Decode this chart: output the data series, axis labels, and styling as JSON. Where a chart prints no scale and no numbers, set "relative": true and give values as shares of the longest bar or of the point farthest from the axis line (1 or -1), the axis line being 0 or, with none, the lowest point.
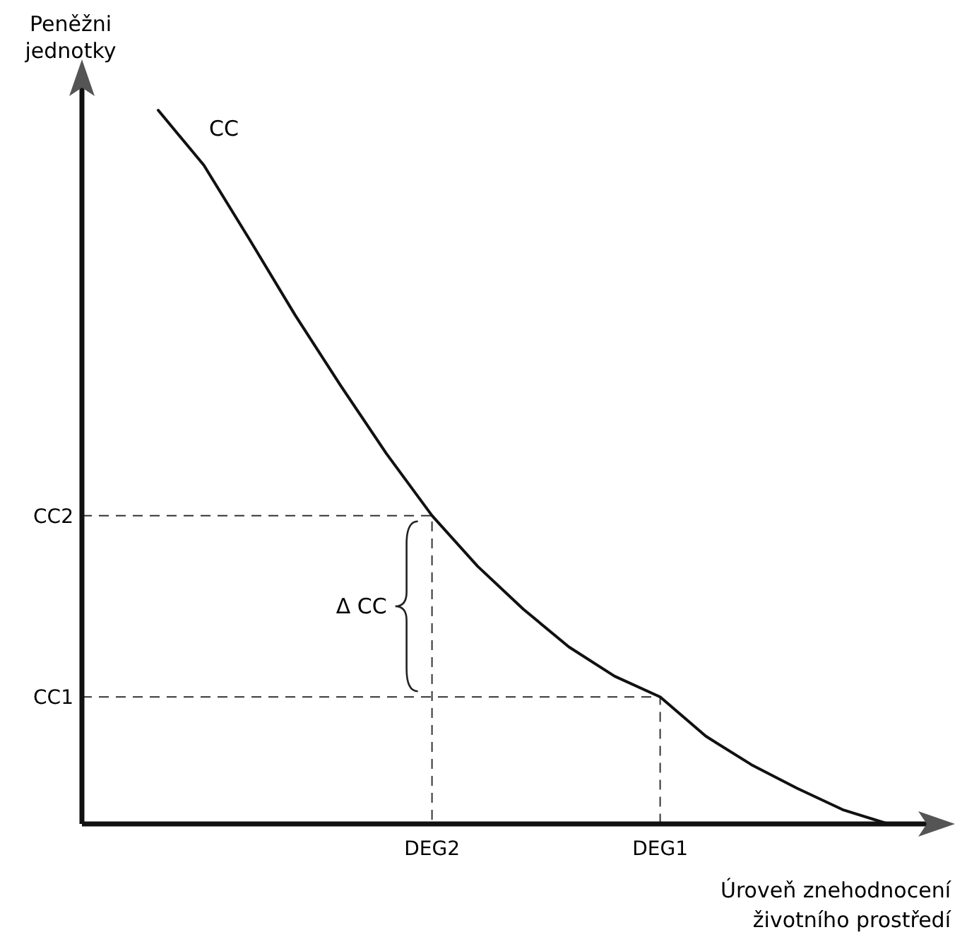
{
  "chart_data": {
    "type": "line",
    "relative": true,
    "ylabel": "Peněžni jednotky",
    "xlabel": "Úroveň znehodnocení životního prostředí",
    "categories": [
      null,
      null,
      null,
      null,
      null,
      null,
      "DEG2",
      null,
      null,
      null,
      null,
      "DEG1",
      null,
      null,
      null,
      null,
      null
    ],
    "series": [
      {
        "name": "CC",
        "color": "#111111",
        "values": [
          1,
          0.923,
          0.819,
          0.713,
          0.614,
          0.519,
          0.432,
          0.361,
          0.301,
          0.248,
          0.207,
          0.178,
          0.123,
          0.083,
          0.05,
          0.02,
          0
        ]
      }
    ],
    "ref_lines": [
      {
        "axis": "y",
        "value": 0.432,
        "label": "CC2",
        "line_style": "dashed"
      },
      {
        "axis": "y",
        "value": 0.178,
        "label": "CC1",
        "line_style": "dashed"
      }
    ],
    "annotations": [
      "Δ CC"
    ],
    "marker": "none",
    "line_style": "solid"
  }
}
